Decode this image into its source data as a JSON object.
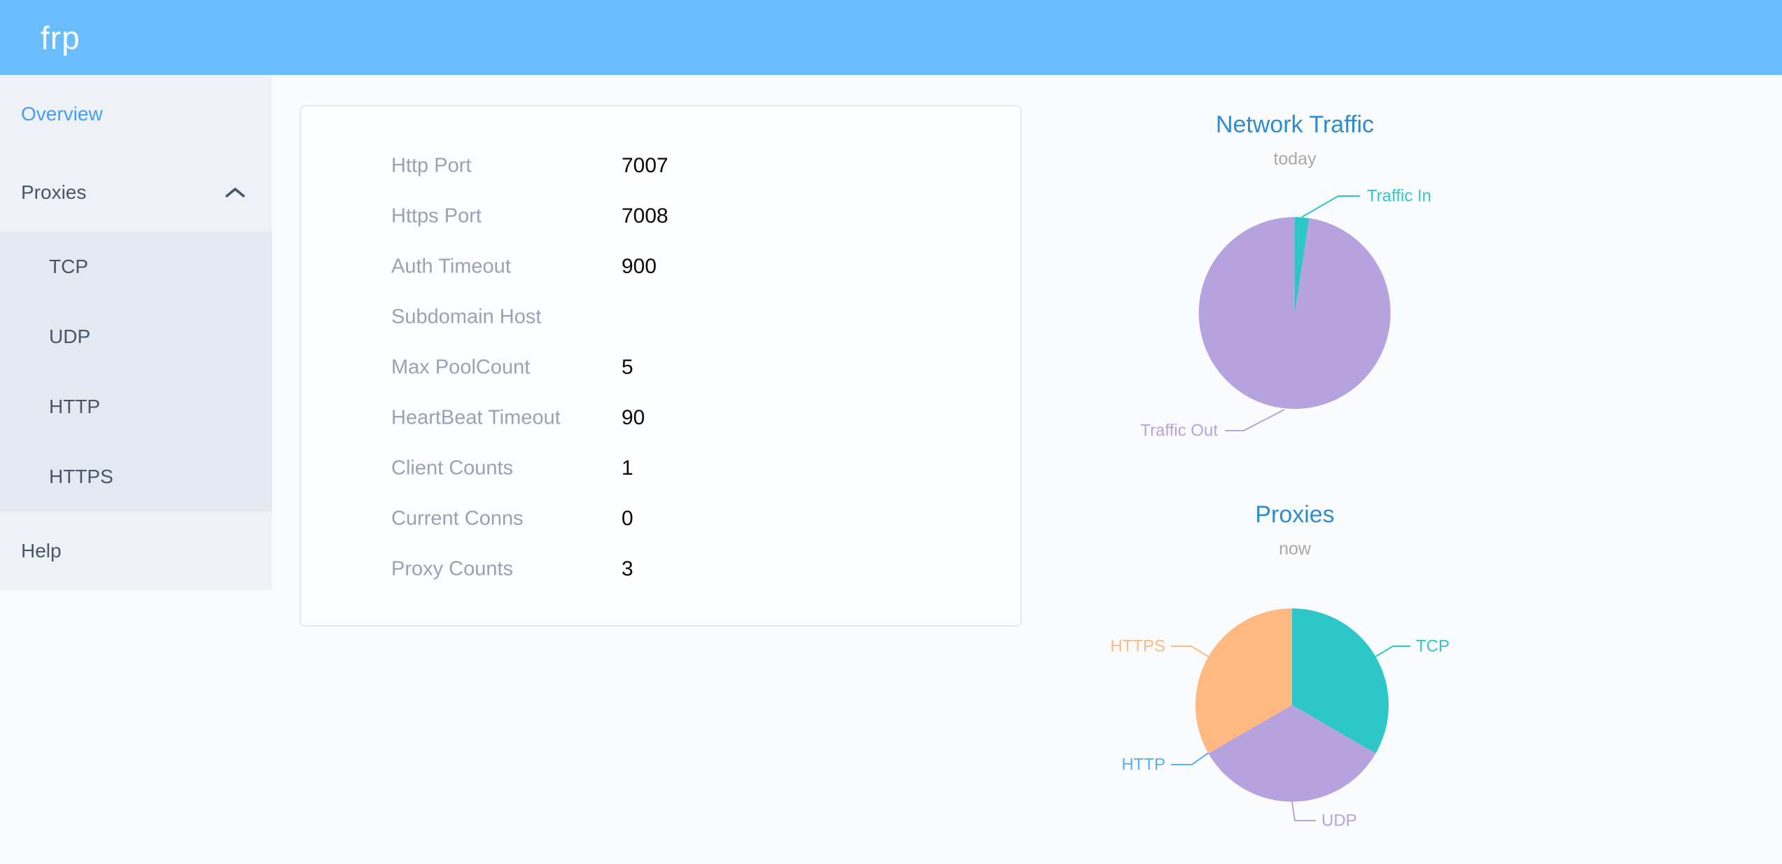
{
  "app": {
    "logo_text": "frp"
  },
  "colors": {
    "header-bg": "#6abdfd",
    "sidebar-bg": "#eef1f6",
    "submenu-bg": "#e4e8f1",
    "menu-text": "#475669",
    "menu-active": "#459df9",
    "page-bg": "#fafbfc",
    "card-bg": "#fcfdfe",
    "card-border": "#e4e8f0",
    "label-gray": "#99a2b3",
    "value-black": "#0a0a0a",
    "chart-title-blue": "#2d8cd2",
    "chart-subtitle-gray": "#a9a9a9"
  },
  "sidebar": {
    "items": [
      {
        "label": "Overview",
        "active": true
      },
      {
        "label": "Proxies",
        "expanded": true,
        "children": [
          "TCP",
          "UDP",
          "HTTP",
          "HTTPS"
        ]
      },
      {
        "label": "Help"
      }
    ]
  },
  "overview_card": {
    "rows": [
      {
        "label": "Http Port",
        "value": "7007"
      },
      {
        "label": "Https Port",
        "value": "7008"
      },
      {
        "label": "Auth Timeout",
        "value": "900"
      },
      {
        "label": "Subdomain Host",
        "value": ""
      },
      {
        "label": "Max PoolCount",
        "value": "5"
      },
      {
        "label": "HeartBeat Timeout",
        "value": "90"
      },
      {
        "label": "Client Counts",
        "value": "1"
      },
      {
        "label": "Current Conns",
        "value": "0"
      },
      {
        "label": "Proxy Counts",
        "value": "3"
      }
    ]
  },
  "chart_data": [
    {
      "type": "pie",
      "title": "Network Traffic",
      "subtitle": "today",
      "legend_position": "none",
      "labels_position": "outside",
      "slices": [
        {
          "label": "Traffic In",
          "percent": 2.4,
          "color": "#2ec7c9"
        },
        {
          "label": "Traffic Out",
          "percent": 97.6,
          "color": "#b6a2de"
        }
      ]
    },
    {
      "type": "pie",
      "title": "Proxies",
      "subtitle": "now",
      "legend_position": "none",
      "labels_position": "outside",
      "slices": [
        {
          "label": "TCP",
          "value": 1,
          "percent": 33.3,
          "color": "#2ec7c9"
        },
        {
          "label": "UDP",
          "value": 1,
          "percent": 33.3,
          "color": "#b6a2de"
        },
        {
          "label": "HTTP",
          "value": 0,
          "percent": 0,
          "color": "#5ab1ef"
        },
        {
          "label": "HTTPS",
          "value": 1,
          "percent": 33.3,
          "color": "#ffb980"
        }
      ]
    }
  ]
}
